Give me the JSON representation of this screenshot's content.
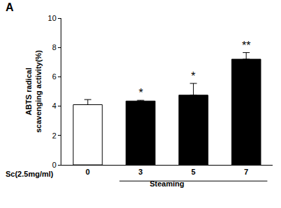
{
  "chart_data": {
    "type": "bar",
    "title": "A",
    "y_label": [
      "ABTS radical",
      "scavenging activity(%)"
    ],
    "x_label": "Steaming",
    "group_label": "Sc(2.5mg/ml)",
    "categories": [
      "0",
      "3",
      "5",
      "7"
    ],
    "values": [
      4.1,
      4.35,
      4.75,
      7.2
    ],
    "errors": [
      0.35,
      0.05,
      0.8,
      0.45
    ],
    "colors": [
      "#ffffff",
      "#000000",
      "#000000",
      "#000000"
    ],
    "annotations": [
      {
        "category": "3",
        "text": "*"
      },
      {
        "category": "5",
        "text": "*"
      },
      {
        "category": "7",
        "text": "**"
      }
    ],
    "ylim": [
      0,
      10
    ],
    "yticks": [
      0,
      2,
      4,
      6,
      8,
      10
    ],
    "grid": false
  }
}
